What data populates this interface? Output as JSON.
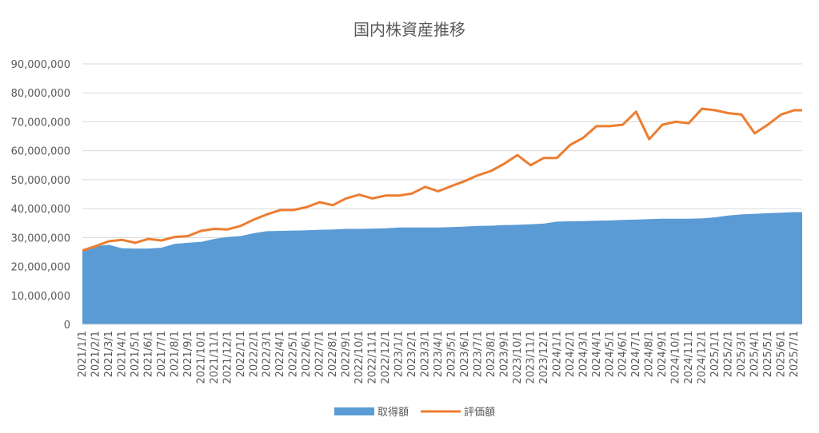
{
  "chart_data": {
    "type": "line",
    "title": "国内株資産推移",
    "categories": [
      "2021/1/1",
      "2021/2/1",
      "2021/3/1",
      "2021/4/1",
      "2021/5/1",
      "2021/6/1",
      "2021/7/1",
      "2021/8/1",
      "2021/9/1",
      "2021/10/1",
      "2021/11/1",
      "2021/12/1",
      "2022/1/1",
      "2022/2/1",
      "2022/3/1",
      "2022/4/1",
      "2022/5/1",
      "2022/6/1",
      "2022/7/1",
      "2022/8/1",
      "2022/9/1",
      "2022/10/1",
      "2022/11/1",
      "2022/12/1",
      "2023/1/1",
      "2023/2/1",
      "2023/3/1",
      "2023/4/1",
      "2023/5/1",
      "2023/6/1",
      "2023/7/1",
      "2023/8/1",
      "2023/9/1",
      "2023/10/1",
      "2023/11/1",
      "2023/12/1",
      "2024/1/1",
      "2024/2/1",
      "2024/3/1",
      "2024/4/1",
      "2024/5/1",
      "2024/6/1",
      "2024/7/1",
      "2024/8/1",
      "2024/9/1",
      "2024/10/1",
      "2024/11/1",
      "2024/12/1",
      "2025/1/1",
      "2025/2/1",
      "2025/3/1",
      "2025/4/1",
      "2025/5/1",
      "2025/6/1",
      "2025/7/1"
    ],
    "series": [
      {
        "name": "取得額",
        "type": "area",
        "color": "#5b9bd5",
        "values": [
          25500000,
          27000000,
          27500000,
          26300000,
          26200000,
          26200000,
          26500000,
          27800000,
          28200000,
          28500000,
          29500000,
          30200000,
          30500000,
          31500000,
          32200000,
          32300000,
          32400000,
          32500000,
          32700000,
          32800000,
          33000000,
          33000000,
          33100000,
          33200000,
          33500000,
          33500000,
          33500000,
          33500000,
          33600000,
          33800000,
          34000000,
          34100000,
          34300000,
          34400000,
          34600000,
          34800000,
          35500000,
          35600000,
          35700000,
          35800000,
          35900000,
          36100000,
          36200000,
          36400000,
          36500000,
          36500000,
          36500000,
          36600000,
          37000000,
          37600000,
          38000000,
          38200000,
          38400000,
          38600000,
          38800000
        ]
      },
      {
        "name": "評価額",
        "type": "line",
        "color": "#ed7d31",
        "values": [
          25500000,
          27000000,
          28700000,
          29200000,
          28200000,
          29500000,
          29000000,
          30200000,
          30500000,
          32300000,
          33000000,
          32800000,
          34000000,
          36200000,
          38000000,
          39500000,
          39500000,
          40500000,
          42200000,
          41200000,
          43500000,
          44800000,
          43500000,
          44500000,
          44500000,
          45200000,
          47500000,
          46000000,
          47800000,
          49500000,
          51500000,
          53000000,
          55500000,
          58500000,
          55000000,
          57500000,
          57500000,
          62000000,
          64500000,
          68500000,
          68500000,
          69000000,
          73500000,
          64000000,
          69000000,
          70000000,
          69500000,
          74500000,
          74000000,
          73000000,
          72500000,
          66000000,
          69000000,
          72500000,
          74000000
        ]
      }
    ],
    "ylim": [
      0,
      90000000
    ],
    "yticks": [
      0,
      {
        "value": 10000000,
        "label": "10,000,000"
      },
      {
        "value": 20000000,
        "label": "20,000,000"
      },
      {
        "value": 30000000,
        "label": "30,000,000"
      },
      {
        "value": 40000000,
        "label": "40,000,000"
      },
      {
        "value": 50000000,
        "label": "50,000,000"
      },
      {
        "value": 60000000,
        "label": "60,000,000"
      },
      {
        "value": 70000000,
        "label": "70,000,000"
      },
      {
        "value": 80000000,
        "label": "80,000,000"
      },
      {
        "value": 90000000,
        "label": "90,000,000"
      }
    ],
    "grid": true,
    "legend": "bottom"
  }
}
